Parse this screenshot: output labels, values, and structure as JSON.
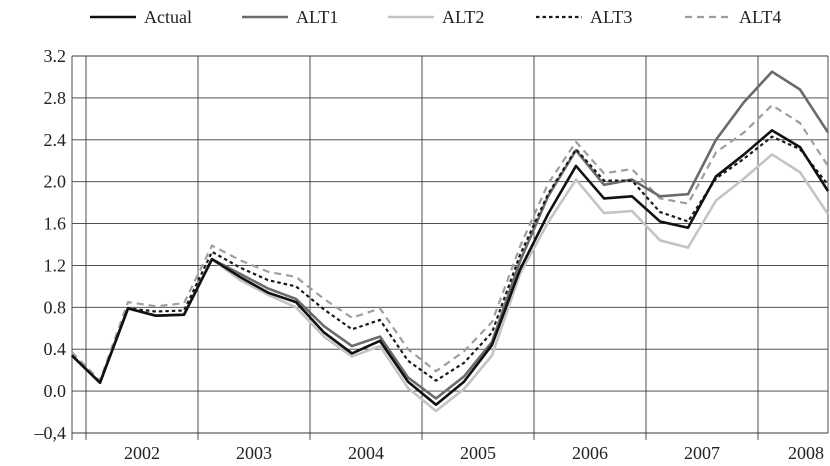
{
  "chart_data": {
    "type": "line",
    "title": "",
    "xlabel": "",
    "ylabel": "",
    "ylim": [
      -0.4,
      3.2
    ],
    "yticks": [
      3.2,
      2.8,
      2.4,
      2.0,
      1.6,
      1.2,
      0.8,
      0.4,
      0.0,
      -0.4
    ],
    "ytick_labels": [
      "3.2",
      "2.8",
      "2.4",
      "2.0",
      "1.6",
      "1.2",
      "0.8",
      "0.4",
      "0.0",
      "–0,4"
    ],
    "x_groups": [
      "2002",
      "2003",
      "2004",
      "2005",
      "2006",
      "2007",
      "2008"
    ],
    "x": [
      "2001 Q4",
      "2002 Q1",
      "2002 Q2",
      "2002 Q3",
      "2002 Q4",
      "2003 Q1",
      "2003 Q2",
      "2003 Q3",
      "2003 Q4",
      "2004 Q1",
      "2004 Q2",
      "2004 Q3",
      "2004 Q4",
      "2005 Q1",
      "2005 Q2",
      "2005 Q3",
      "2005 Q4",
      "2006 Q1",
      "2006 Q2",
      "2006 Q3",
      "2006 Q4",
      "2007 Q1",
      "2007 Q2",
      "2007 Q3",
      "2007 Q4",
      "2008 Q1",
      "2008 Q2",
      "2008 Q3"
    ],
    "grid": true,
    "legend": "top",
    "series": [
      {
        "name": "Actual",
        "color": "#111111",
        "dash": "solid",
        "values": [
          0.34,
          0.08,
          0.79,
          0.72,
          0.73,
          1.26,
          1.09,
          0.94,
          0.85,
          0.56,
          0.36,
          0.48,
          0.09,
          -0.13,
          0.09,
          0.44,
          1.16,
          1.69,
          2.15,
          1.84,
          1.86,
          1.62,
          1.56,
          2.05,
          2.26,
          2.49,
          2.33,
          1.91
        ]
      },
      {
        "name": "ALT1",
        "color": "#6b6b6b",
        "dash": "solid",
        "values": [
          0.34,
          0.08,
          0.79,
          0.72,
          0.73,
          1.26,
          1.12,
          0.98,
          0.88,
          0.62,
          0.43,
          0.52,
          0.13,
          -0.07,
          0.14,
          0.47,
          1.24,
          1.86,
          2.3,
          1.97,
          2.02,
          1.86,
          1.88,
          2.4,
          2.76,
          3.05,
          2.88,
          2.47
        ]
      },
      {
        "name": "ALT2",
        "color": "#c4c4c4",
        "dash": "solid",
        "values": [
          0.34,
          0.08,
          0.79,
          0.72,
          0.73,
          1.26,
          1.06,
          0.92,
          0.8,
          0.52,
          0.33,
          0.43,
          0.03,
          -0.19,
          0.02,
          0.34,
          1.12,
          1.61,
          2.02,
          1.7,
          1.72,
          1.44,
          1.37,
          1.82,
          2.03,
          2.26,
          2.09,
          1.69
        ]
      },
      {
        "name": "ALT3",
        "color": "#1a1a1a",
        "dash": "dotted",
        "values": [
          0.34,
          0.08,
          0.79,
          0.76,
          0.77,
          1.33,
          1.18,
          1.06,
          1.0,
          0.78,
          0.59,
          0.68,
          0.29,
          0.1,
          0.27,
          0.56,
          1.3,
          1.88,
          2.31,
          2.01,
          2.01,
          1.71,
          1.62,
          2.03,
          2.22,
          2.43,
          2.31,
          1.97
        ]
      },
      {
        "name": "ALT4",
        "color": "#9e9e9e",
        "dash": "dashed",
        "values": [
          0.37,
          0.1,
          0.85,
          0.81,
          0.84,
          1.39,
          1.25,
          1.14,
          1.09,
          0.88,
          0.7,
          0.79,
          0.4,
          0.19,
          0.38,
          0.66,
          1.38,
          1.98,
          2.38,
          2.08,
          2.12,
          1.84,
          1.79,
          2.28,
          2.47,
          2.73,
          2.56,
          2.15
        ]
      }
    ]
  }
}
